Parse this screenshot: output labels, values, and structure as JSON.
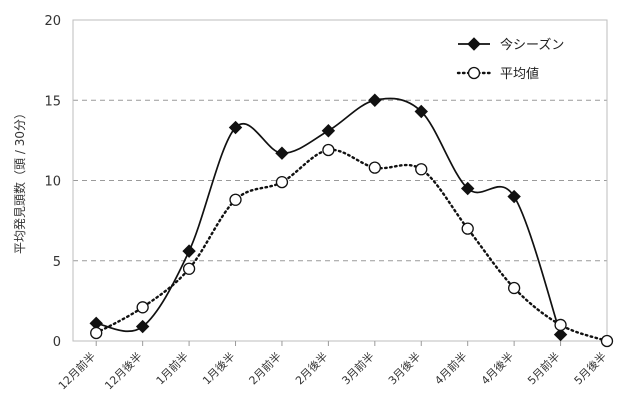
{
  "chart_data": {
    "type": "line",
    "title": "",
    "xlabel": "",
    "ylabel": "平均発見頭数（頭 / 30分）",
    "ylim": [
      0,
      20
    ],
    "yticks": [
      0,
      5,
      10,
      15,
      20
    ],
    "grid": "horizontal dashed",
    "legend_position": "top-right",
    "categories": [
      "12月前半",
      "12月後半",
      "1月前半",
      "1月後半",
      "2月前半",
      "2月後半",
      "3月前半",
      "3月後半",
      "4月前半",
      "4月後半",
      "5月前半",
      "5月後半"
    ],
    "series": [
      {
        "name": "今シーズン",
        "values": [
          1.1,
          0.9,
          5.6,
          13.3,
          11.7,
          13.1,
          15.0,
          14.3,
          9.5,
          9.0,
          0.4,
          null
        ],
        "color": "#111111",
        "marker": "diamond",
        "line_style": "solid"
      },
      {
        "name": "平均値",
        "values": [
          0.5,
          2.1,
          4.5,
          8.8,
          9.9,
          11.9,
          10.8,
          10.7,
          7.0,
          3.3,
          1.0,
          0.0
        ],
        "color": "#111111",
        "marker": "open-circle",
        "line_style": "dotted"
      }
    ]
  }
}
